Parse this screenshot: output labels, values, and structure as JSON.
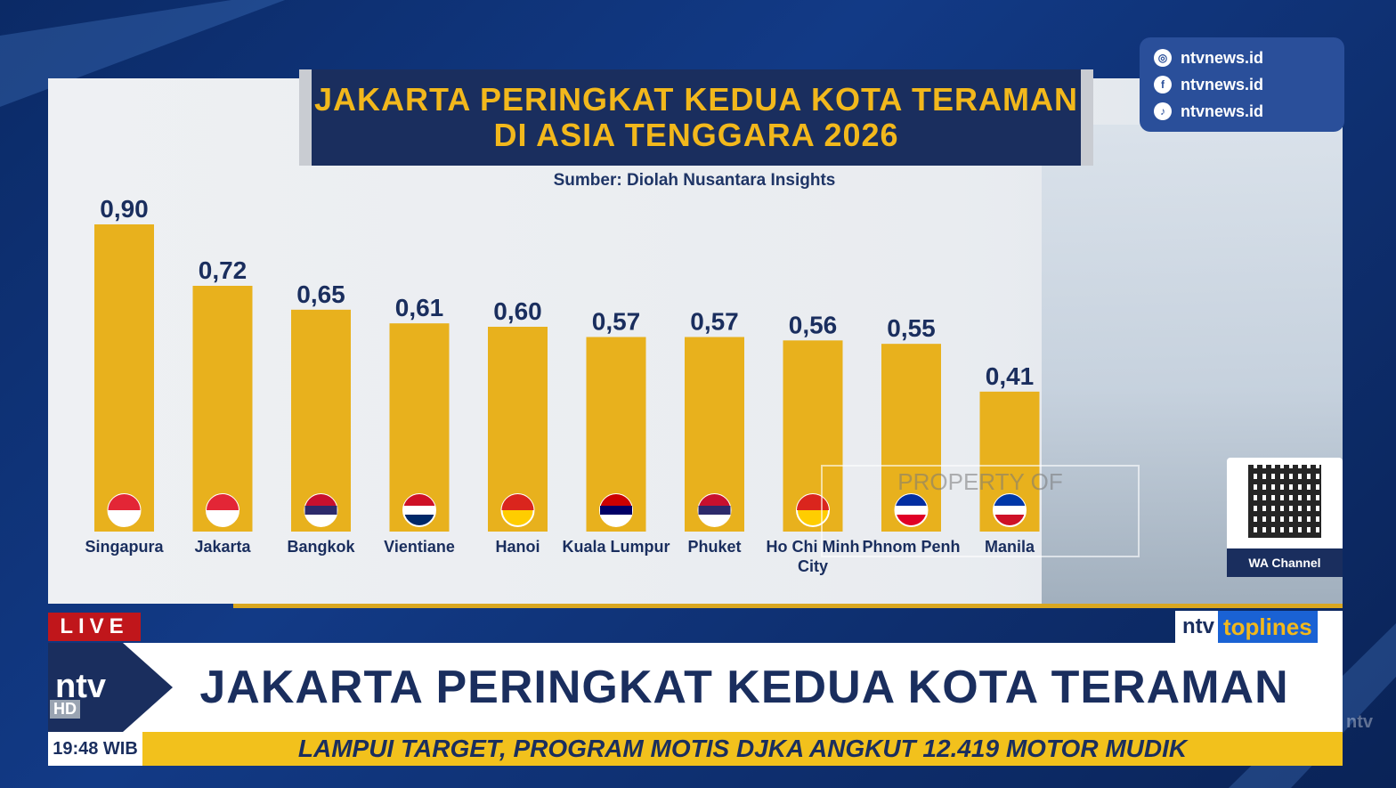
{
  "chart_data": {
    "type": "bar",
    "title": "JAKARTA PERINGKAT KEDUA KOTA TERAMAN DI ASIA TENGGARA 2026",
    "title_lines": [
      "JAKARTA PERINGKAT KEDUA KOTA TERAMAN",
      "DI ASIA TENGGARA 2026"
    ],
    "subtitle": "Sumber: Diolah Nusantara Insights",
    "categories": [
      "Singapura",
      "Jakarta",
      "Bangkok",
      "Vientiane",
      "Hanoi",
      "Kuala Lumpur",
      "Phuket",
      "Ho Chi Minh City",
      "Phnom Penh",
      "Manila"
    ],
    "category_lines": [
      [
        "Singapura"
      ],
      [
        "Jakarta"
      ],
      [
        "Bangkok"
      ],
      [
        "Vientiane"
      ],
      [
        "Hanoi"
      ],
      [
        "Kuala Lumpur"
      ],
      [
        "Phuket"
      ],
      [
        "Ho Chi Minh",
        "City"
      ],
      [
        "Phnom Penh"
      ],
      [
        "Manila"
      ]
    ],
    "values": [
      0.9,
      0.72,
      0.65,
      0.61,
      0.6,
      0.57,
      0.57,
      0.56,
      0.55,
      0.41
    ],
    "value_labels": [
      "0,90",
      "0,72",
      "0,65",
      "0,61",
      "0,60",
      "0,57",
      "0,57",
      "0,56",
      "0,55",
      "0,41"
    ],
    "flags": [
      "singapore-flag",
      "indonesia-flag",
      "thailand-flag",
      "laos-flag",
      "vietnam-flag",
      "malaysia-flag",
      "thailand-flag",
      "vietnam-flag",
      "cambodia-flag",
      "philippines-flag"
    ],
    "ylim": [
      0,
      0.9
    ],
    "bar_color": "#e8b11d",
    "grid": false
  },
  "social": {
    "items": [
      {
        "icon": "instagram-icon",
        "label": "ntvnews.id"
      },
      {
        "icon": "facebook-icon",
        "label": "ntvnews.id"
      },
      {
        "icon": "tiktok-icon",
        "label": "ntvnews.id"
      }
    ]
  },
  "watermark": {
    "text": "PROPERTY OF"
  },
  "qr": {
    "label": "WA Channel"
  },
  "broadcast": {
    "live": "LIVE",
    "brand_ntv": "ntv",
    "brand_program": "toplines",
    "headline": "JAKARTA PERINGKAT KEDUA KOTA TERAMAN",
    "logo": "ntv",
    "logo_hd": "HD",
    "clock": "19:48 WIB",
    "ticker": "LAMPUI TARGET, PROGRAM MOTIS DJKA ANGKUT 12.419 MOTOR MUDIK",
    "corner": "ntv"
  },
  "colors": {
    "navy": "#1a2e5e",
    "gold": "#f2b81c",
    "live_red": "#c0161b"
  }
}
